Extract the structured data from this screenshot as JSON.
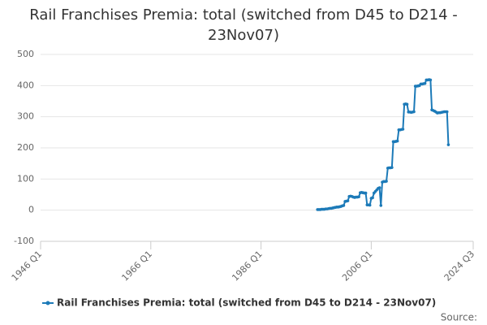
{
  "chart_data": {
    "type": "line",
    "title": "Rail Franchises Premia: total (switched from D45 to D214 - 23Nov07)",
    "source": "Source:",
    "x": [
      "1996 Q2",
      "1996 Q3",
      "1996 Q4",
      "1997 Q1",
      "1997 Q2",
      "1997 Q3",
      "1997 Q4",
      "1998 Q1",
      "1998 Q2",
      "1998 Q3",
      "1998 Q4",
      "1999 Q1",
      "1999 Q2",
      "1999 Q3",
      "1999 Q4",
      "2000 Q1",
      "2000 Q2",
      "2000 Q3",
      "2000 Q4",
      "2001 Q1",
      "2001 Q2",
      "2001 Q3",
      "2001 Q4",
      "2002 Q1",
      "2002 Q2",
      "2002 Q3",
      "2002 Q4",
      "2003 Q1",
      "2003 Q2",
      "2003 Q3",
      "2003 Q4",
      "2004 Q1",
      "2004 Q2",
      "2004 Q3",
      "2004 Q4",
      "2005 Q1",
      "2005 Q2",
      "2005 Q3",
      "2005 Q4",
      "2006 Q1",
      "2006 Q2",
      "2006 Q3",
      "2006 Q4",
      "2007 Q1",
      "2007 Q2",
      "2007 Q3",
      "2007 Q4",
      "2008 Q1",
      "2008 Q2",
      "2008 Q3",
      "2008 Q4",
      "2009 Q1",
      "2009 Q2",
      "2009 Q3",
      "2009 Q4",
      "2010 Q1",
      "2010 Q2",
      "2010 Q3",
      "2010 Q4",
      "2011 Q1",
      "2011 Q2",
      "2011 Q3",
      "2011 Q4",
      "2012 Q1",
      "2012 Q2",
      "2012 Q3",
      "2012 Q4",
      "2013 Q1",
      "2013 Q2",
      "2013 Q3",
      "2013 Q4",
      "2014 Q1",
      "2014 Q2",
      "2014 Q3",
      "2014 Q4",
      "2015 Q1",
      "2015 Q2",
      "2015 Q3",
      "2015 Q4",
      "2016 Q1",
      "2016 Q2",
      "2016 Q3",
      "2016 Q4",
      "2017 Q1",
      "2017 Q2",
      "2017 Q3",
      "2017 Q4",
      "2018 Q1",
      "2018 Q2",
      "2018 Q3",
      "2018 Q4",
      "2019 Q1",
      "2019 Q2",
      "2019 Q3",
      "2019 Q4",
      "2020 Q1"
    ],
    "series": [
      {
        "name": "Rail Franchises Premia: total (switched from D45 to D214 - 23Nov07)",
        "color": "#1c7ab8",
        "values": [
          2,
          2,
          2,
          3,
          3,
          3,
          4,
          4,
          5,
          6,
          6,
          7,
          8,
          9,
          10,
          10,
          11,
          12,
          14,
          15,
          28,
          29,
          30,
          44,
          45,
          44,
          42,
          41,
          42,
          42,
          43,
          56,
          57,
          56,
          55,
          55,
          17,
          17,
          16,
          38,
          40,
          55,
          60,
          65,
          70,
          72,
          15,
          90,
          92,
          92,
          93,
          135,
          136,
          136,
          137,
          220,
          220,
          221,
          222,
          258,
          258,
          259,
          260,
          340,
          341,
          340,
          315,
          315,
          314,
          315,
          316,
          398,
          398,
          399,
          400,
          405,
          405,
          406,
          407,
          418,
          418,
          419,
          418,
          322,
          320,
          318,
          315,
          312,
          313,
          313,
          314,
          315,
          316,
          316,
          316,
          210
        ]
      }
    ],
    "xlim": [
      "1946 Q1",
      "2024 Q3"
    ],
    "xticks": [
      "1946 Q1",
      "1966 Q1",
      "1986 Q1",
      "2006 Q1",
      "2024 Q3"
    ],
    "ylim": [
      -100,
      500
    ],
    "yticks": [
      -100,
      0,
      100,
      200,
      300,
      400,
      500
    ],
    "grid": true
  }
}
